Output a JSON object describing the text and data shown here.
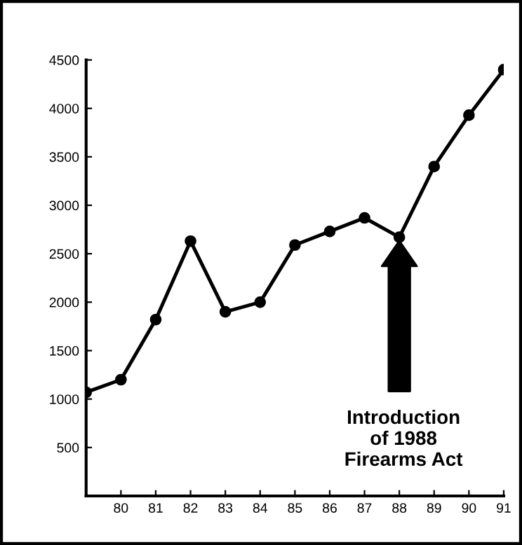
{
  "chart_data": {
    "type": "line",
    "x": [
      79,
      80,
      81,
      82,
      83,
      84,
      85,
      86,
      87,
      88,
      89,
      90,
      91
    ],
    "values": [
      1070,
      1200,
      1820,
      2630,
      1900,
      2000,
      2590,
      2730,
      2870,
      2670,
      3400,
      3930,
      4400
    ],
    "color": "#000000",
    "marker": "circle",
    "line_style": "solid",
    "grid": false,
    "xlim": [
      79,
      91
    ],
    "xticks": [
      {
        "value": 79,
        "label": null
      },
      80,
      81,
      82,
      83,
      84,
      85,
      86,
      87,
      88,
      89,
      90,
      91
    ],
    "ylim": [
      0,
      4500
    ],
    "yticks": [
      {
        "value": 0,
        "label": null
      },
      500,
      1000,
      1500,
      2000,
      2500,
      3000,
      3500,
      4000,
      4500
    ],
    "annotations": [
      "Introduction\nof 1988\nFirearms Act"
    ]
  }
}
